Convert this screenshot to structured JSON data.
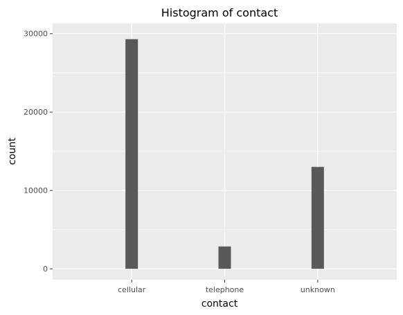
{
  "chart_data": {
    "type": "bar",
    "title": "Histogram of contact",
    "xlabel": "contact",
    "ylabel": "count",
    "categories": [
      "cellular",
      "telephone",
      "unknown"
    ],
    "values": [
      29300,
      2850,
      13000
    ],
    "ylim": [
      -1400,
      31300
    ],
    "yticks": [
      0,
      10000,
      20000,
      30000
    ],
    "ytick_labels": [
      "0",
      "10000",
      "20000",
      "30000"
    ],
    "grid": true,
    "colors": {
      "bar": "#595959",
      "panel": "#ebebeb",
      "grid": "#ffffff",
      "tick_text": "#4d4d4d",
      "tick_mark": "#333333"
    }
  }
}
